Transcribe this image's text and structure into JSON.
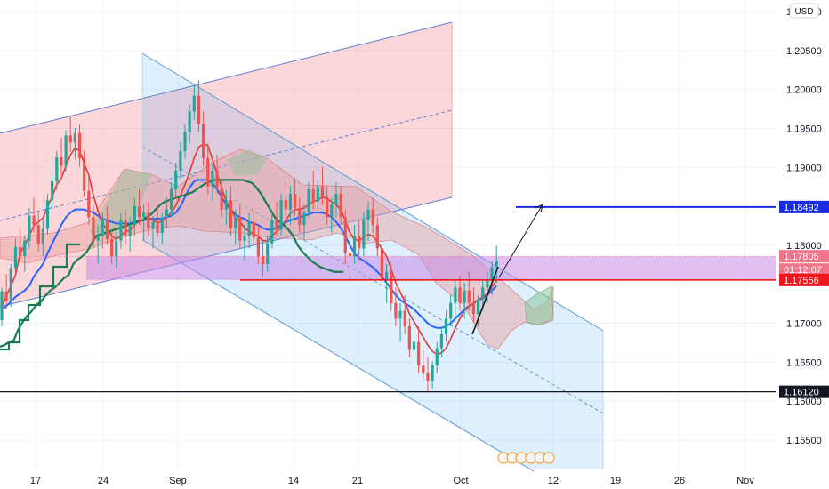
{
  "chart_data": {
    "type": "candlestick",
    "currency": "USD",
    "y_ticks": [
      "1.21000",
      "1.20500",
      "1.20000",
      "1.19500",
      "1.19000",
      "1.18000",
      "1.17000",
      "1.16500",
      "1.16000",
      "1.15500"
    ],
    "x_ticks": [
      "17",
      "24",
      "Sep",
      "14",
      "21",
      "Oct",
      "12",
      "19",
      "26",
      "Nov"
    ],
    "ylim": [
      1.151,
      1.2115
    ],
    "price_labels": [
      {
        "name": "target-level",
        "value": "1.18492",
        "color": "#1a2ae0"
      },
      {
        "name": "last-price",
        "value": "1.17805",
        "color": "#f0748a"
      },
      {
        "name": "countdown",
        "value": "01:12:07",
        "color": "#f0748a"
      },
      {
        "name": "support-level",
        "value": "1.17556",
        "color": "#f0161d"
      },
      {
        "name": "low-level",
        "value": "1.16120",
        "color": "#131722"
      }
    ],
    "levels": {
      "target": 1.18492,
      "support": 1.17556,
      "low": 1.1612,
      "zone_top": 1.1786,
      "zone_bottom": 1.17556
    },
    "colors": {
      "bull": "#26a69a",
      "bear": "#ef5350",
      "tenkan": "#2962ff",
      "kijun": "#e53935",
      "lagging": "#1b7a52",
      "up_channel": "#f23645",
      "down_channel": "#2196f3",
      "zone": "#c98be6"
    },
    "candles": [
      [
        1.1704,
        1.1746,
        1.1696,
        1.1741
      ],
      [
        1.1741,
        1.1763,
        1.1718,
        1.1729
      ],
      [
        1.1729,
        1.1776,
        1.1721,
        1.1771
      ],
      [
        1.1771,
        1.1809,
        1.176,
        1.1798
      ],
      [
        1.1798,
        1.1822,
        1.1781,
        1.1786
      ],
      [
        1.1786,
        1.1812,
        1.1766,
        1.1806
      ],
      [
        1.1806,
        1.1848,
        1.1796,
        1.1838
      ],
      [
        1.1838,
        1.1861,
        1.1816,
        1.1826
      ],
      [
        1.1826,
        1.1842,
        1.1792,
        1.1802
      ],
      [
        1.1802,
        1.1832,
        1.1786,
        1.1821
      ],
      [
        1.1821,
        1.1866,
        1.1814,
        1.1858
      ],
      [
        1.1858,
        1.1891,
        1.1846,
        1.1882
      ],
      [
        1.1882,
        1.1921,
        1.1871,
        1.1913
      ],
      [
        1.1913,
        1.1938,
        1.1891,
        1.1902
      ],
      [
        1.1902,
        1.1948,
        1.1895,
        1.1941
      ],
      [
        1.1941,
        1.1966,
        1.192,
        1.1932
      ],
      [
        1.1932,
        1.1951,
        1.1911,
        1.1944
      ],
      [
        1.1944,
        1.1955,
        1.1901,
        1.1912
      ],
      [
        1.1912,
        1.1922,
        1.1862,
        1.187
      ],
      [
        1.187,
        1.1891,
        1.1826,
        1.1836
      ],
      [
        1.1836,
        1.1852,
        1.1796,
        1.1806
      ],
      [
        1.1806,
        1.1826,
        1.1776,
        1.1812
      ],
      [
        1.1812,
        1.1842,
        1.1796,
        1.1834
      ],
      [
        1.1834,
        1.1851,
        1.1801,
        1.1808
      ],
      [
        1.1808,
        1.1821,
        1.1776,
        1.1786
      ],
      [
        1.1786,
        1.1816,
        1.1771,
        1.1806
      ],
      [
        1.1806,
        1.1841,
        1.1796,
        1.1832
      ],
      [
        1.1832,
        1.1846,
        1.1801,
        1.1812
      ],
      [
        1.1812,
        1.1836,
        1.1792,
        1.1826
      ],
      [
        1.1826,
        1.1861,
        1.1812,
        1.185
      ],
      [
        1.185,
        1.1872,
        1.1826,
        1.1836
      ],
      [
        1.1836,
        1.1852,
        1.1806,
        1.1842
      ],
      [
        1.1842,
        1.1856,
        1.1812,
        1.1822
      ],
      [
        1.1822,
        1.1838,
        1.1796,
        1.183
      ],
      [
        1.183,
        1.1851,
        1.181,
        1.1816
      ],
      [
        1.1816,
        1.1842,
        1.1801,
        1.1836
      ],
      [
        1.1836,
        1.1862,
        1.1822,
        1.1846
      ],
      [
        1.1846,
        1.1881,
        1.1836,
        1.1872
      ],
      [
        1.1872,
        1.1906,
        1.186,
        1.1896
      ],
      [
        1.1896,
        1.1932,
        1.1886,
        1.1921
      ],
      [
        1.1921,
        1.1956,
        1.1911,
        1.1946
      ],
      [
        1.1946,
        1.1981,
        1.1931,
        1.1972
      ],
      [
        1.1972,
        1.2006,
        1.1961,
        1.1992
      ],
      [
        1.1992,
        1.2012,
        1.1946,
        1.1956
      ],
      [
        1.1956,
        1.1972,
        1.1901,
        1.1912
      ],
      [
        1.1912,
        1.1931,
        1.1866,
        1.1876
      ],
      [
        1.1876,
        1.1906,
        1.1856,
        1.1896
      ],
      [
        1.1896,
        1.1916,
        1.1866,
        1.1874
      ],
      [
        1.1874,
        1.1886,
        1.1836,
        1.1846
      ],
      [
        1.1846,
        1.1871,
        1.1826,
        1.1858
      ],
      [
        1.1858,
        1.1876,
        1.1812,
        1.1822
      ],
      [
        1.1822,
        1.1846,
        1.1801,
        1.1836
      ],
      [
        1.1836,
        1.1852,
        1.1796,
        1.1806
      ],
      [
        1.1806,
        1.1826,
        1.1781,
        1.1812
      ],
      [
        1.1812,
        1.1842,
        1.1796,
        1.183
      ],
      [
        1.183,
        1.185,
        1.1801,
        1.181
      ],
      [
        1.181,
        1.1826,
        1.1776,
        1.1786
      ],
      [
        1.1786,
        1.1806,
        1.1761,
        1.1776
      ],
      [
        1.1776,
        1.1812,
        1.1766,
        1.1802
      ],
      [
        1.1802,
        1.1842,
        1.1796,
        1.1832
      ],
      [
        1.1832,
        1.1856,
        1.1812,
        1.182
      ],
      [
        1.182,
        1.1866,
        1.1812,
        1.1858
      ],
      [
        1.1858,
        1.1881,
        1.1836,
        1.1846
      ],
      [
        1.1846,
        1.1876,
        1.1826,
        1.1866
      ],
      [
        1.1866,
        1.1886,
        1.1838,
        1.1848
      ],
      [
        1.1848,
        1.1861,
        1.1816,
        1.1826
      ],
      [
        1.1826,
        1.1852,
        1.1806,
        1.1842
      ],
      [
        1.1842,
        1.1881,
        1.1836,
        1.1872
      ],
      [
        1.1872,
        1.1896,
        1.1846,
        1.1856
      ],
      [
        1.1856,
        1.1886,
        1.1846,
        1.1876
      ],
      [
        1.1876,
        1.1901,
        1.1852,
        1.1862
      ],
      [
        1.1862,
        1.1876,
        1.1826,
        1.1836
      ],
      [
        1.1836,
        1.1861,
        1.1816,
        1.1852
      ],
      [
        1.1852,
        1.1881,
        1.1836,
        1.1866
      ],
      [
        1.1866,
        1.1876,
        1.1826,
        1.1836
      ],
      [
        1.1836,
        1.1846,
        1.1776,
        1.179
      ],
      [
        1.179,
        1.1806,
        1.1756,
        1.1786
      ],
      [
        1.1786,
        1.1826,
        1.1776,
        1.1812
      ],
      [
        1.1812,
        1.1832,
        1.1781,
        1.1796
      ],
      [
        1.1796,
        1.1842,
        1.1786,
        1.1832
      ],
      [
        1.1832,
        1.1856,
        1.1806,
        1.1846
      ],
      [
        1.1846,
        1.1861,
        1.1816,
        1.1826
      ],
      [
        1.1826,
        1.1836,
        1.1786,
        1.1796
      ],
      [
        1.1796,
        1.1806,
        1.1746,
        1.1756
      ],
      [
        1.1756,
        1.1776,
        1.1726,
        1.1766
      ],
      [
        1.1766,
        1.1776,
        1.1716,
        1.1726
      ],
      [
        1.1726,
        1.1746,
        1.1696,
        1.1706
      ],
      [
        1.1706,
        1.1726,
        1.1676,
        1.1716
      ],
      [
        1.1716,
        1.1736,
        1.1686,
        1.1696
      ],
      [
        1.1696,
        1.1706,
        1.1656,
        1.1666
      ],
      [
        1.1666,
        1.1686,
        1.1646,
        1.1676
      ],
      [
        1.1676,
        1.1696,
        1.1636,
        1.1646
      ],
      [
        1.1646,
        1.1666,
        1.1626,
        1.1636
      ],
      [
        1.1636,
        1.1656,
        1.1612,
        1.1626
      ],
      [
        1.1626,
        1.1651,
        1.1616,
        1.1646
      ],
      [
        1.1646,
        1.1676,
        1.1636,
        1.1668
      ],
      [
        1.1668,
        1.1696,
        1.1656,
        1.1686
      ],
      [
        1.1686,
        1.1716,
        1.1676,
        1.1706
      ],
      [
        1.1706,
        1.1736,
        1.1696,
        1.1726
      ],
      [
        1.1726,
        1.1756,
        1.1706,
        1.1746
      ],
      [
        1.1746,
        1.1761,
        1.1716,
        1.1726
      ],
      [
        1.1726,
        1.1752,
        1.1706,
        1.1742
      ],
      [
        1.1742,
        1.1766,
        1.1716,
        1.1726
      ],
      [
        1.1726,
        1.1746,
        1.1701,
        1.1712
      ],
      [
        1.1712,
        1.1736,
        1.1696,
        1.173
      ],
      [
        1.173,
        1.1756,
        1.1716,
        1.1746
      ],
      [
        1.1746,
        1.1766,
        1.1726,
        1.1756
      ],
      [
        1.1756,
        1.178,
        1.1736,
        1.1772
      ],
      [
        1.1772,
        1.1799,
        1.1752,
        1.178
      ]
    ],
    "tenkan": [
      1.1722,
      1.1735,
      1.1748,
      1.1762,
      1.179,
      1.18,
      1.1812,
      1.1825,
      1.183,
      1.1835,
      1.185,
      1.1862,
      1.1878,
      1.1886,
      1.1902,
      1.1916,
      1.1925,
      1.1921,
      1.1905,
      1.189,
      1.1864,
      1.1844,
      1.1826,
      1.1822,
      1.1812,
      1.1808,
      1.1812,
      1.1818,
      1.1819,
      1.1826,
      1.1832,
      1.1833,
      1.1836,
      1.1832,
      1.1829,
      1.1831,
      1.1836,
      1.1842,
      1.1851,
      1.1864,
      1.1878,
      1.1894,
      1.1912,
      1.1926,
      1.193,
      1.1928,
      1.191,
      1.1892,
      1.1874,
      1.1856,
      1.1846,
      1.1836,
      1.1831,
      1.1822,
      1.1818,
      1.1814,
      1.1812,
      1.1806,
      1.1806,
      1.1812,
      1.1818,
      1.1822,
      1.1832,
      1.1841,
      1.1846,
      1.1846,
      1.1848,
      1.1852,
      1.1856,
      1.1858,
      1.1862,
      1.186,
      1.1856,
      1.1852,
      1.1846,
      1.1832,
      1.1816,
      1.1808,
      1.1806,
      1.181,
      1.1814,
      1.1812,
      1.1804,
      1.1796,
      1.1786,
      1.177,
      1.1752,
      1.174,
      1.1728,
      1.1712,
      1.1702,
      1.1692,
      1.1682,
      1.1672,
      1.1664,
      1.166,
      1.1662,
      1.1668,
      1.168,
      1.1694,
      1.1706,
      1.1716,
      1.1722,
      1.1726,
      1.173,
      1.1734,
      1.1738,
      1.1746,
      1.1756
    ],
    "kijun": [
      1.1718,
      1.1722,
      1.1728,
      1.1734,
      1.1738,
      1.1742,
      1.1748,
      1.176,
      1.1768,
      1.1776,
      1.179,
      1.1802,
      1.1814,
      1.1826,
      1.1836,
      1.1842,
      1.1846,
      1.1846,
      1.1846,
      1.1844,
      1.1842,
      1.1838,
      1.1834,
      1.1832,
      1.183,
      1.1828,
      1.1828,
      1.1828,
      1.1828,
      1.183,
      1.1832,
      1.1832,
      1.1834,
      1.1834,
      1.1834,
      1.1834,
      1.1836,
      1.1838,
      1.1842,
      1.185,
      1.1862,
      1.1874,
      1.1882,
      1.1884,
      1.1884,
      1.1884,
      1.188,
      1.1872,
      1.1862,
      1.1852,
      1.1846,
      1.184,
      1.1836,
      1.1834,
      1.183,
      1.1828,
      1.1826,
      1.1822,
      1.182,
      1.182,
      1.1822,
      1.1826,
      1.183,
      1.1832,
      1.1834,
      1.1836,
      1.1838,
      1.184,
      1.1842,
      1.1842,
      1.1842,
      1.184,
      1.1836,
      1.183,
      1.1822,
      1.1812,
      1.18,
      1.179,
      1.1784,
      1.178,
      1.1776,
      1.1772,
      1.1766,
      1.176,
      1.1752,
      1.1744,
      1.1736,
      1.173,
      1.1726,
      1.1722,
      1.1718,
      1.1712,
      1.1706,
      1.17,
      1.1696,
      1.1694,
      1.1694,
      1.1696,
      1.17,
      1.1706,
      1.1712,
      1.1718,
      1.1722,
      1.1726,
      1.173,
      1.1732,
      1.1736,
      1.1742,
      1.1748
    ],
    "lagging": [
      1.167,
      1.1672,
      1.1676,
      1.1678,
      1.1692,
      1.1702,
      1.171,
      1.1716,
      1.1724,
      1.1728,
      1.1736,
      1.1742,
      1.1746,
      1.1752,
      1.1758,
      1.1762,
      1.1776,
      1.1782,
      1.1786,
      1.1792,
      1.1802,
      1.1812,
      1.1814,
      1.1816,
      1.1818,
      1.182,
      1.1822,
      1.1824,
      1.1826,
      1.1828,
      1.183,
      1.1832,
      1.1836,
      1.184,
      1.1846,
      1.1852,
      1.1856,
      1.1858,
      1.186,
      1.1862,
      1.1864,
      1.1866,
      1.1868,
      1.1872,
      1.1876,
      1.188,
      1.1882,
      1.1884,
      1.1884,
      1.1884,
      1.1884,
      1.1884,
      1.1884,
      1.1884,
      1.1882,
      1.188,
      1.1874,
      1.1866,
      1.1856,
      1.1846,
      1.1836,
      1.183,
      1.1826,
      1.182,
      1.1812,
      1.18,
      1.1792,
      1.1786,
      1.178,
      1.1776,
      1.1772,
      1.177,
      1.1768,
      1.1766,
      1.1766,
      1.1766
    ]
  }
}
